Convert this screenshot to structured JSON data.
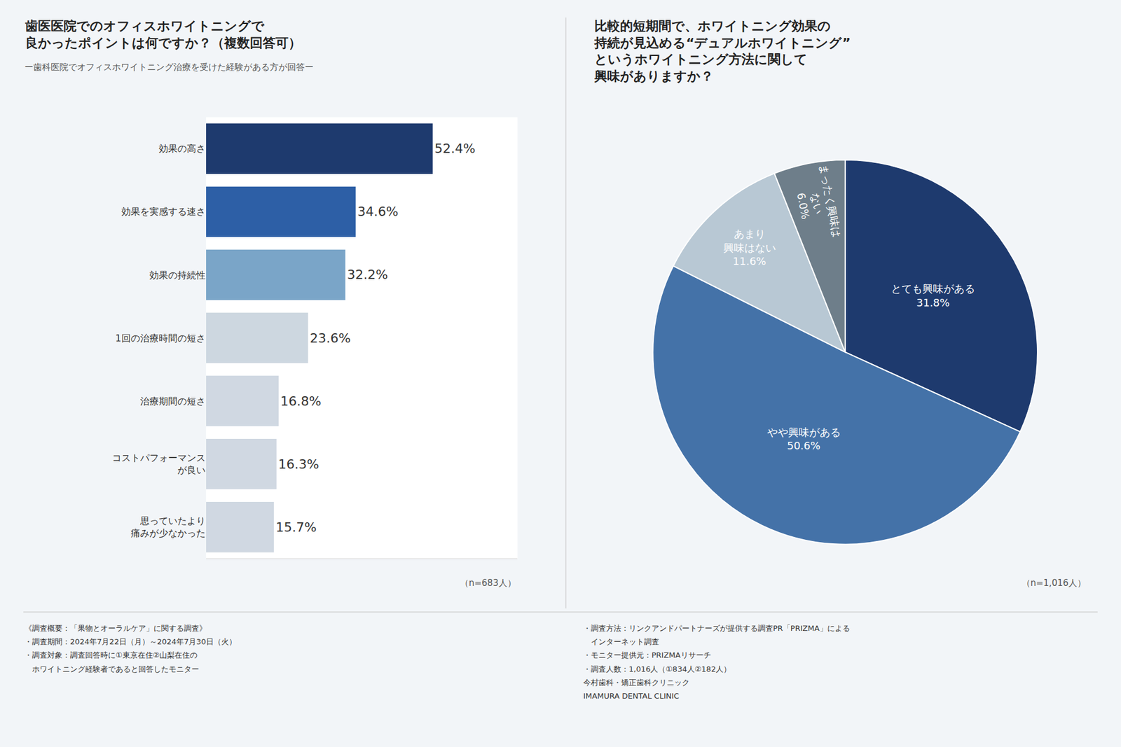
{
  "chart_data": [
    {
      "type": "bar",
      "title": "歯医医院でのオフィスホワイトニングで\n良かったポイントは何ですか？（複数回答可）",
      "subtitle": "ー歯科医院でオフィスホワイトニング治療を受けた経験がある方が回答ー",
      "orientation": "horizontal",
      "categories": [
        "効果の高さ",
        "効果を実感する速さ",
        "効果の持続性",
        "1回の治療時間の短さ",
        "治療期間の短さ",
        "コストパフォーマンス\nが良い",
        "思っていたより\n痛みが少なかった"
      ],
      "values": [
        52.4,
        34.6,
        32.2,
        23.6,
        16.8,
        16.3,
        15.7
      ],
      "value_labels": [
        "52.4%",
        "34.6%",
        "32.2%",
        "23.6%",
        "16.8%",
        "16.3%",
        "15.7%"
      ],
      "colors": [
        "#1e3a6e",
        "#2d5fa6",
        "#7aa5c8",
        "#cdd7e0",
        "#d0d8e2",
        "#d0d8e2",
        "#d0d8e2"
      ],
      "xlim": [
        0,
        72
      ],
      "data_labels": true,
      "tick_labels": "y",
      "grid": false,
      "annotations": [
        "（n=683人）",
        "《調査概要：「果物とオーラルケア」に関する調査》",
        "・調査期間：2024年7月22日（月）～2024年7月30日（火）",
        "・調査対象：調査回答時に①東京在住②山梨在住の",
        "　ホワイトニング経験者であると回答したモニター"
      ]
    },
    {
      "type": "pie",
      "title": "比較的短期間で、ホワイトニング効果の\n持続が見込める“デュアルホワイトニング”\nというホワイトニング方法に関して\n興味がありますか？",
      "categories": [
        "とても興味がある",
        "やや興味がある",
        "あまり\n興味はない",
        "まったく興味は\nない"
      ],
      "values": [
        31.8,
        50.6,
        11.6,
        6.0
      ],
      "value_labels": [
        "31.8%",
        "50.6%",
        "11.6%",
        "6.0%"
      ],
      "colors": [
        "#1e3a6e",
        "#4472a8",
        "#b8c8d4",
        "#6e7e8a"
      ],
      "data_labels": true,
      "annotations": [
        "（n=1,016人）",
        "・調査方法：リンクアンドパートナーズが提供する調査PR「PRIZMA」による",
        "　インターネット調査",
        "・モニター提供元：PRIZMAリサーチ",
        "・調査人数：1,016人（①834人②182人）",
        "今村歯科・矯正歯科クリニック",
        "IMAMURA DENTAL CLINIC"
      ]
    }
  ]
}
